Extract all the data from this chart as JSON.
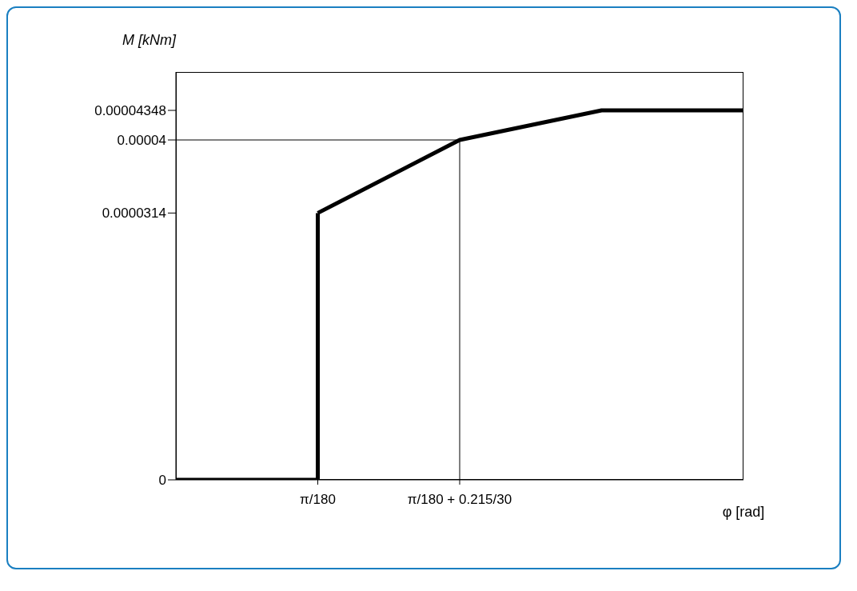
{
  "chart_data": {
    "type": "line",
    "xlabel": "φ [rad]",
    "ylabel": "M [kNm]",
    "categories": [
      null,
      "π/180",
      "π/180 + 0.215/30",
      null,
      null
    ],
    "series": [
      {
        "type": "step",
        "color": "#000000",
        "values": [
          0,
          3.14e-05,
          null,
          null,
          null
        ]
      },
      {
        "color": "#000000",
        "values": [
          null,
          3.14e-05,
          4e-05,
          4.348e-05,
          4.348e-05
        ]
      }
    ],
    "ylim": [
      0,
      4.8e-05
    ],
    "yticks": [
      {
        "value": 0,
        "label": "0"
      },
      {
        "value": 3.14e-05,
        "label": "0.0000314"
      },
      {
        "value": 4e-05,
        "label": "0.00004"
      },
      {
        "value": 4.348e-05,
        "label": "0.00004348"
      }
    ],
    "ref_lines": [
      {
        "axis": "y",
        "value": 4e-05,
        "color": "#000000"
      },
      {
        "axis": "x",
        "value": "π/180 + 0.215/30",
        "color": "#000000"
      }
    ],
    "grid": false,
    "legend": false,
    "marker": "none",
    "line_style": "solid"
  }
}
